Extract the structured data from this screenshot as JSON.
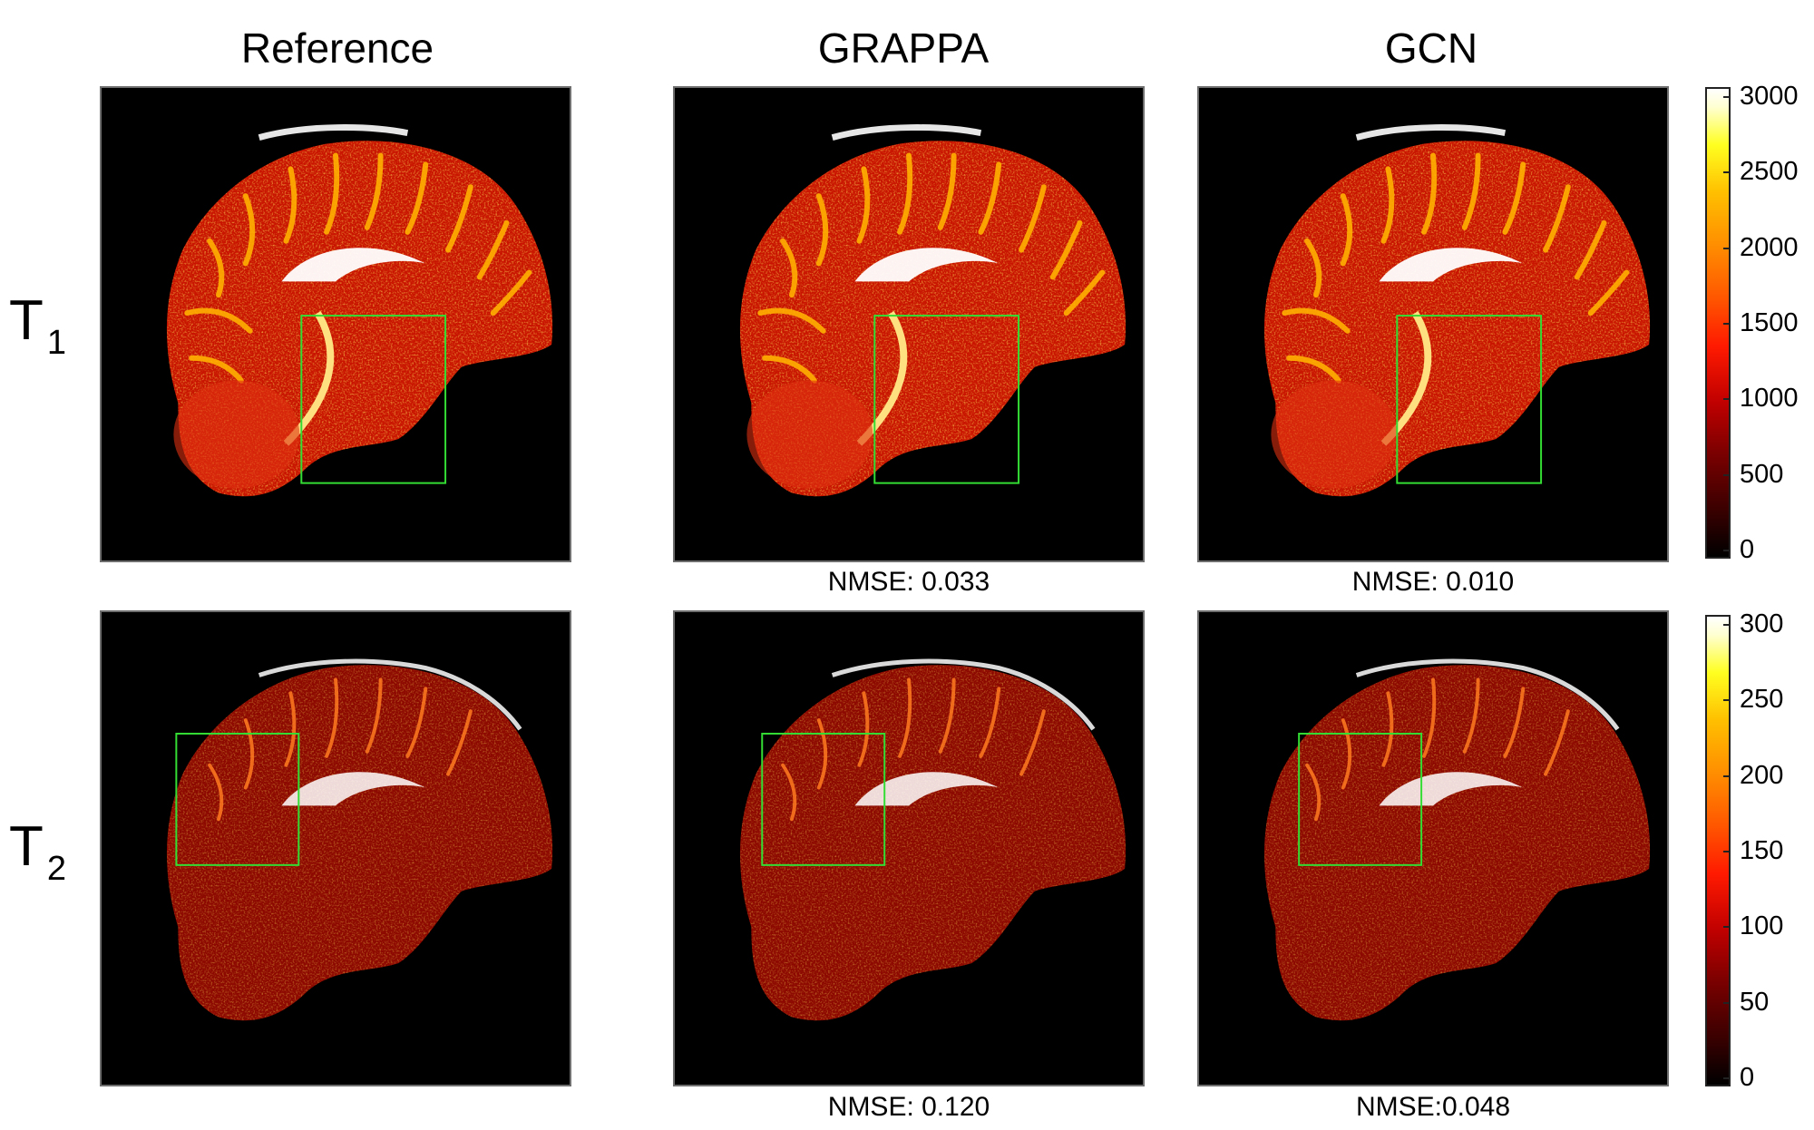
{
  "columns": [
    "Reference",
    "GRAPPA",
    "GCN"
  ],
  "rows": [
    {
      "label_main": "T",
      "label_sub": "1",
      "nmse": [
        "",
        "NMSE: 0.033",
        "NMSE: 0.010"
      ]
    },
    {
      "label_main": "T",
      "label_sub": "2",
      "nmse": [
        "",
        "NMSE: 0.120",
        "NMSE:0.048"
      ]
    }
  ],
  "colorbars": [
    {
      "ticks": [
        "3000",
        "2500",
        "2000",
        "1500",
        "1000",
        "500",
        "0"
      ]
    },
    {
      "ticks": [
        "300",
        "250",
        "200",
        "150",
        "100",
        "50",
        "0"
      ]
    }
  ],
  "colors": {
    "roi_box": "#33dd33",
    "panel_bg": "#000000",
    "tissue": "#c81400"
  }
}
